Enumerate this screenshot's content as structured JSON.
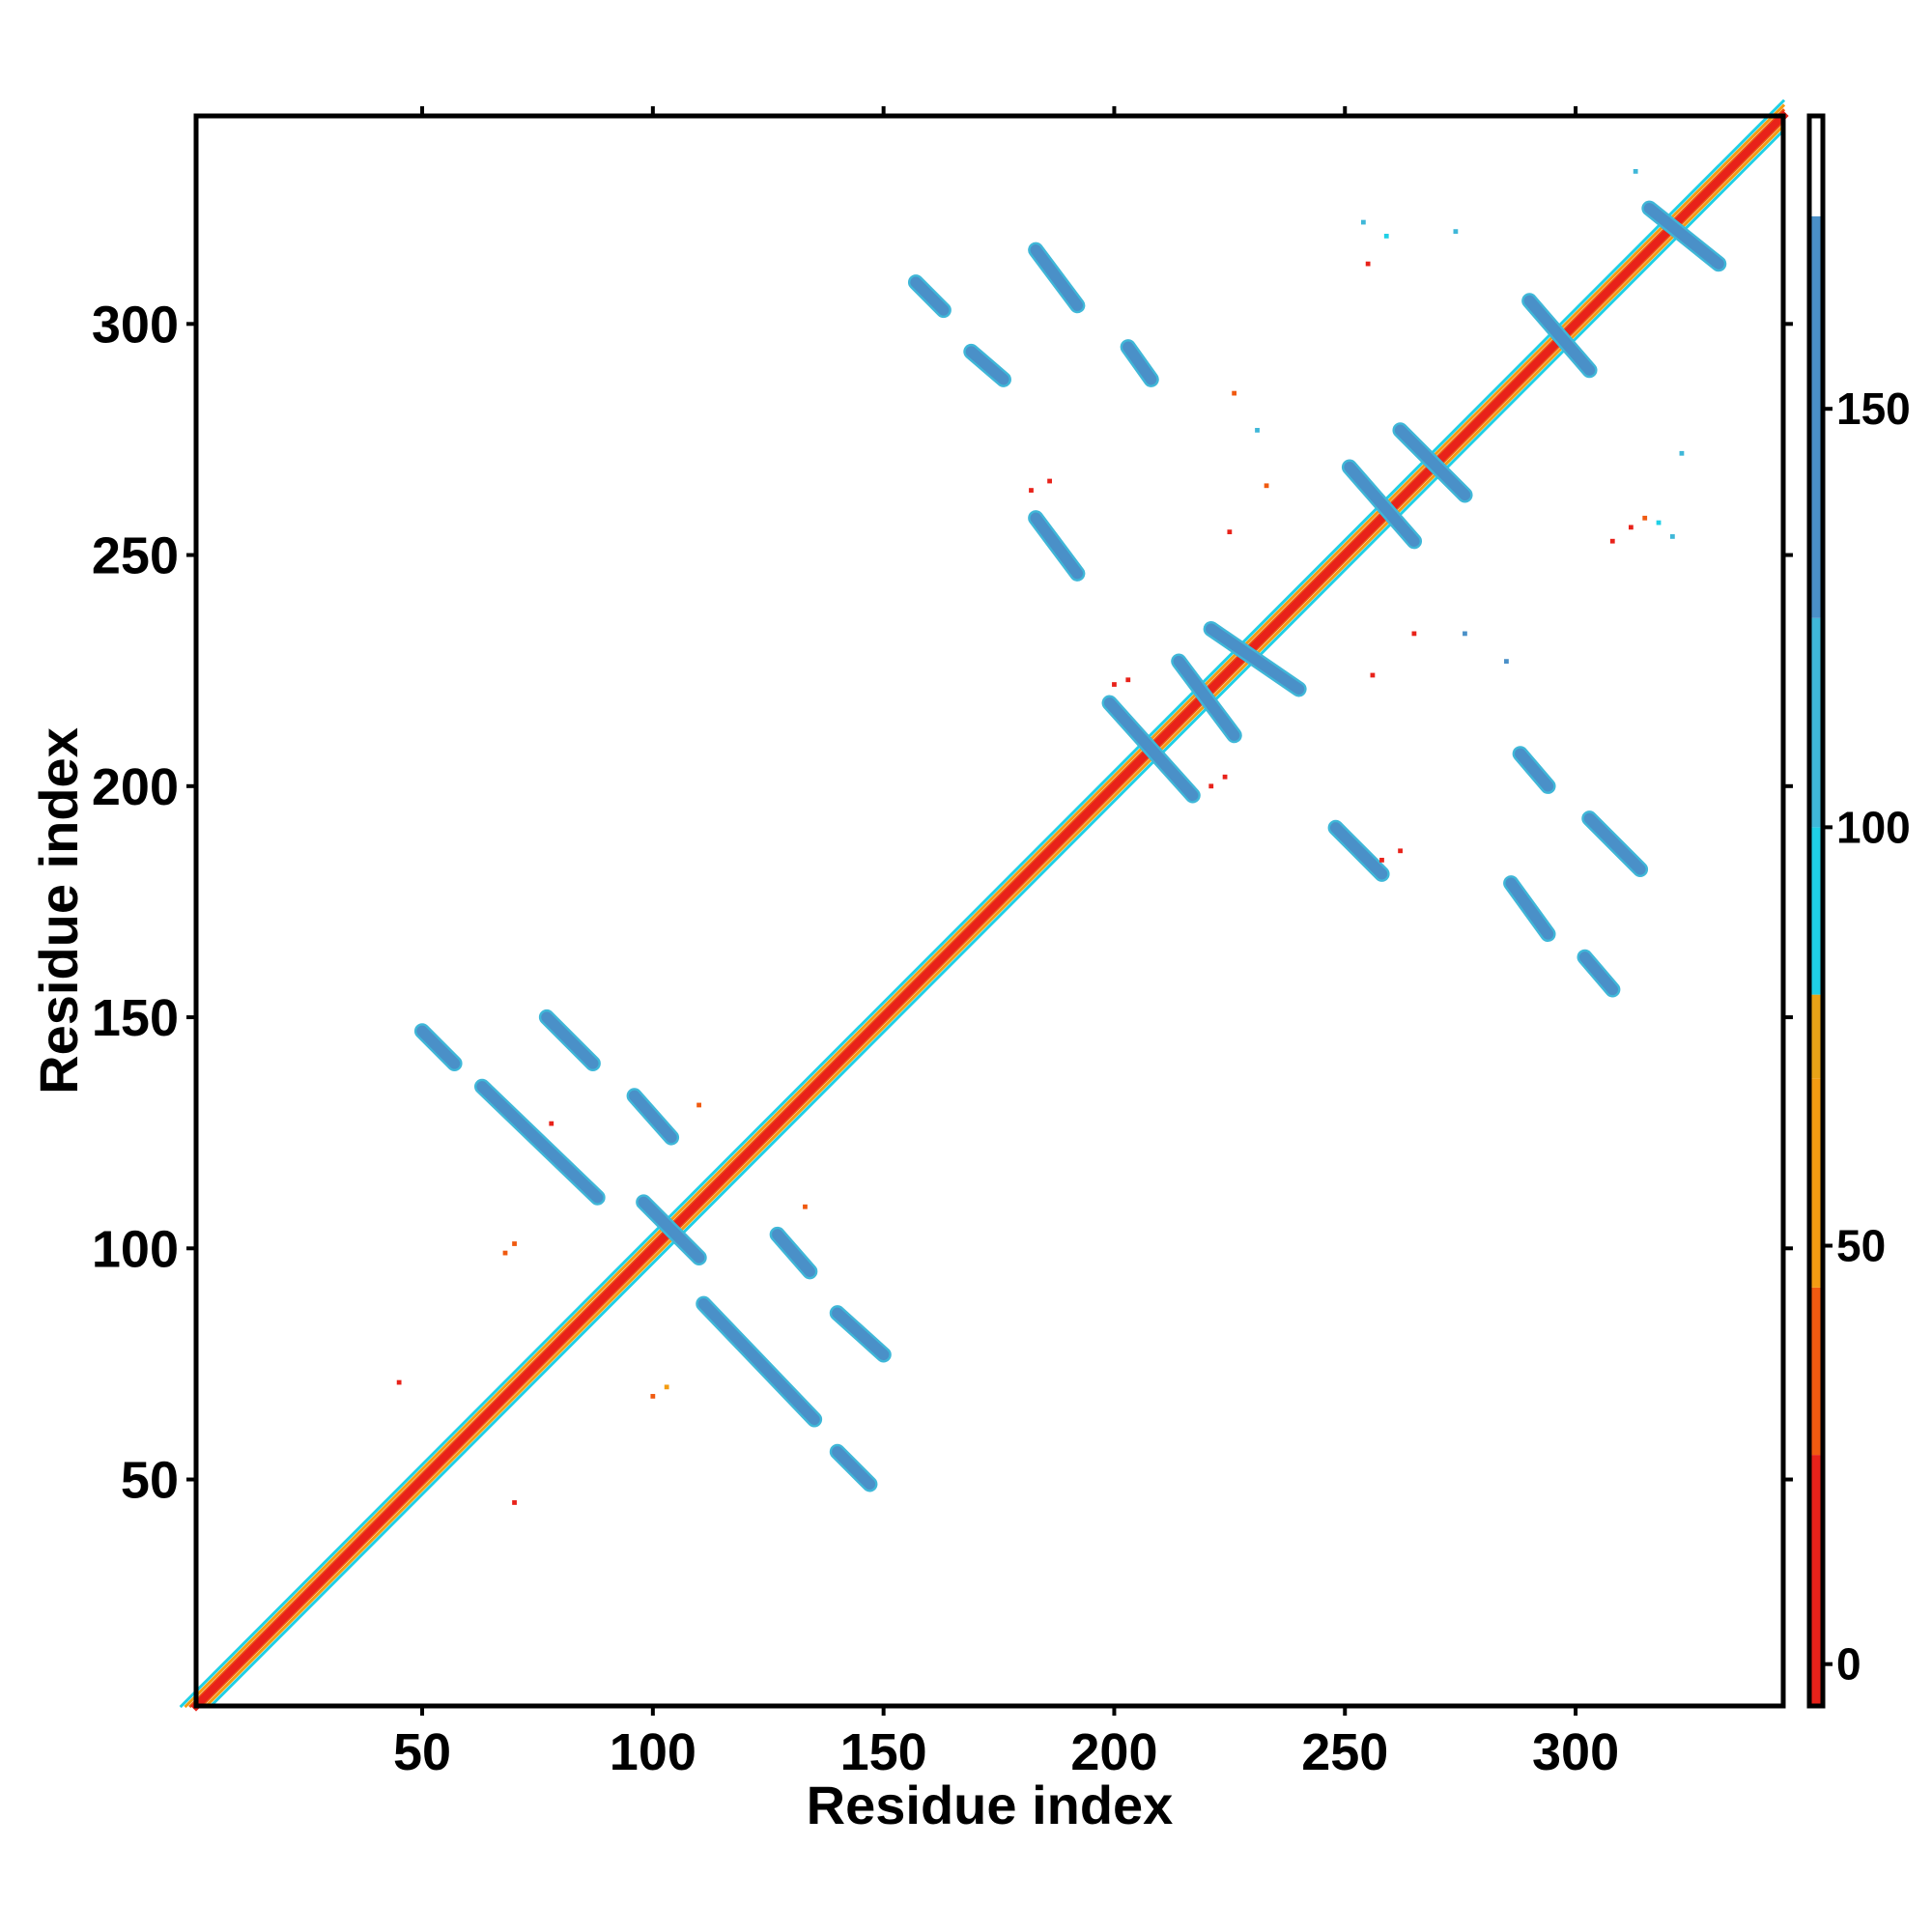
{
  "chart_data": {
    "type": "heatmap",
    "title": "",
    "xlabel": "Residue index",
    "ylabel": "Residue index",
    "xlim": [
      1,
      345
    ],
    "ylim": [
      1,
      345
    ],
    "xticks": [
      "50",
      "100",
      "150",
      "200",
      "250",
      "300"
    ],
    "yticks": [
      "50",
      "100",
      "150",
      "200",
      "250",
      "300"
    ],
    "grid": false,
    "colorbar": {
      "ticks": [
        "0",
        "50",
        "100",
        "150"
      ],
      "range": [
        -5,
        185
      ],
      "bands": [
        {
          "from": -5,
          "to": 25,
          "color": "#e8221a"
        },
        {
          "from": 25,
          "to": 45,
          "color": "#f05a10"
        },
        {
          "from": 45,
          "to": 70,
          "color": "#f39c12"
        },
        {
          "from": 70,
          "to": 80,
          "color": "#e8a317"
        },
        {
          "from": 80,
          "to": 100,
          "color": "#1fd0e6"
        },
        {
          "from": 100,
          "to": 125,
          "color": "#3fb7d8"
        },
        {
          "from": 125,
          "to": 173,
          "color": "#4a90c8"
        },
        {
          "from": 173,
          "to": 185,
          "color": "#ffffff"
        }
      ]
    },
    "diagonal": {
      "from": 1,
      "to": 345
    },
    "contact_segments": [
      {
        "x": [
          50,
          57
        ],
        "y": [
          147,
          140
        ],
        "color": "#4a90c8"
      },
      {
        "x": [
          63,
          88
        ],
        "y": [
          135,
          111
        ],
        "color": "#4a90c8"
      },
      {
        "x": [
          77,
          87
        ],
        "y": [
          150,
          140
        ],
        "color": "#4a90c8"
      },
      {
        "x": [
          96,
          104
        ],
        "y": [
          133,
          124
        ],
        "color": "#4a90c8"
      },
      {
        "x": [
          98,
          110
        ],
        "y": [
          110,
          98
        ],
        "color": "#4a90c8"
      },
      {
        "x": [
          111,
          135
        ],
        "y": [
          88,
          63
        ],
        "color": "#4a90c8"
      },
      {
        "x": [
          127,
          134
        ],
        "y": [
          103,
          95
        ],
        "color": "#4a90c8"
      },
      {
        "x": [
          140,
          150
        ],
        "y": [
          86,
          77
        ],
        "color": "#4a90c8"
      },
      {
        "x": [
          140,
          147
        ],
        "y": [
          56,
          49
        ],
        "color": "#4a90c8"
      },
      {
        "x": [
          157,
          163
        ],
        "y": [
          309,
          303
        ],
        "color": "#4a90c8"
      },
      {
        "x": [
          169,
          176
        ],
        "y": [
          294,
          288
        ],
        "color": "#4a90c8"
      },
      {
        "x": [
          183,
          192
        ],
        "y": [
          316,
          304
        ],
        "color": "#4a90c8"
      },
      {
        "x": [
          183,
          192
        ],
        "y": [
          258,
          246
        ],
        "color": "#4a90c8"
      },
      {
        "x": [
          203,
          208
        ],
        "y": [
          295,
          288
        ],
        "color": "#4a90c8"
      },
      {
        "x": [
          199,
          217
        ],
        "y": [
          218,
          198
        ],
        "color": "#4a90c8"
      },
      {
        "x": [
          214,
          226
        ],
        "y": [
          227,
          211
        ],
        "color": "#4a90c8"
      },
      {
        "x": [
          221,
          240
        ],
        "y": [
          234,
          221
        ],
        "color": "#4a90c8"
      },
      {
        "x": [
          248,
          258
        ],
        "y": [
          191,
          181
        ],
        "color": "#4a90c8"
      },
      {
        "x": [
          251,
          265
        ],
        "y": [
          269,
          253
        ],
        "color": "#4a90c8"
      },
      {
        "x": [
          262,
          276
        ],
        "y": [
          277,
          263
        ],
        "color": "#4a90c8"
      },
      {
        "x": [
          288,
          294
        ],
        "y": [
          207,
          200
        ],
        "color": "#4a90c8"
      },
      {
        "x": [
          303,
          314
        ],
        "y": [
          193,
          182
        ],
        "color": "#4a90c8"
      },
      {
        "x": [
          286,
          294
        ],
        "y": [
          179,
          168
        ],
        "color": "#4a90c8"
      },
      {
        "x": [
          302,
          308
        ],
        "y": [
          163,
          156
        ],
        "color": "#4a90c8"
      },
      {
        "x": [
          290,
          303
        ],
        "y": [
          305,
          290
        ],
        "color": "#4a90c8"
      },
      {
        "x": [
          316,
          331
        ],
        "y": [
          325,
          313
        ],
        "color": "#4a90c8"
      }
    ],
    "contact_points": [
      {
        "x": 45,
        "y": 71,
        "color": "#e8221a"
      },
      {
        "x": 70,
        "y": 45,
        "color": "#e8221a"
      },
      {
        "x": 68,
        "y": 99,
        "color": "#f05a10"
      },
      {
        "x": 70,
        "y": 101,
        "color": "#f05a10"
      },
      {
        "x": 100,
        "y": 68,
        "color": "#f05a10"
      },
      {
        "x": 103,
        "y": 70,
        "color": "#f39c12"
      },
      {
        "x": 78,
        "y": 127,
        "color": "#e8221a"
      },
      {
        "x": 110,
        "y": 131,
        "color": "#f05a10"
      },
      {
        "x": 133,
        "y": 109,
        "color": "#f05a10"
      },
      {
        "x": 182,
        "y": 264,
        "color": "#e8221a"
      },
      {
        "x": 186,
        "y": 266,
        "color": "#e8221a"
      },
      {
        "x": 200,
        "y": 222,
        "color": "#e8221a"
      },
      {
        "x": 203,
        "y": 223,
        "color": "#e8221a"
      },
      {
        "x": 221,
        "y": 200,
        "color": "#e8221a"
      },
      {
        "x": 224,
        "y": 202,
        "color": "#e8221a"
      },
      {
        "x": 225,
        "y": 255,
        "color": "#e8221a"
      },
      {
        "x": 226,
        "y": 285,
        "color": "#f05a10"
      },
      {
        "x": 231,
        "y": 277,
        "color": "#3fb7d8"
      },
      {
        "x": 233,
        "y": 265,
        "color": "#f05a10"
      },
      {
        "x": 254,
        "y": 322,
        "color": "#3fb7d8"
      },
      {
        "x": 256,
        "y": 224,
        "color": "#e8221a"
      },
      {
        "x": 259,
        "y": 319,
        "color": "#1fd0e6"
      },
      {
        "x": 255,
        "y": 313,
        "color": "#e8221a"
      },
      {
        "x": 258,
        "y": 184,
        "color": "#e8221a"
      },
      {
        "x": 262,
        "y": 186,
        "color": "#e8221a"
      },
      {
        "x": 265,
        "y": 233,
        "color": "#e8221a"
      },
      {
        "x": 274,
        "y": 320,
        "color": "#3fb7d8"
      },
      {
        "x": 276,
        "y": 233,
        "color": "#4a90c8"
      },
      {
        "x": 285,
        "y": 227,
        "color": "#4a90c8"
      },
      {
        "x": 308,
        "y": 253,
        "color": "#e8221a"
      },
      {
        "x": 312,
        "y": 256,
        "color": "#e8221a"
      },
      {
        "x": 315,
        "y": 258,
        "color": "#f05a10"
      },
      {
        "x": 318,
        "y": 257,
        "color": "#1fd0e6"
      },
      {
        "x": 321,
        "y": 254,
        "color": "#3fb7d8"
      },
      {
        "x": 323,
        "y": 272,
        "color": "#3fb7d8"
      },
      {
        "x": 330,
        "y": 313,
        "color": "#4a90c8"
      },
      {
        "x": 313,
        "y": 333,
        "color": "#3fb7d8"
      }
    ]
  }
}
